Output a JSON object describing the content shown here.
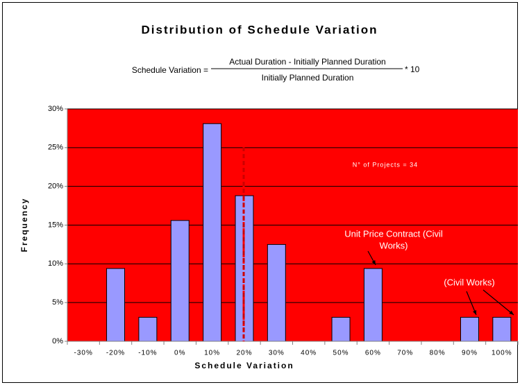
{
  "chart_data": {
    "type": "bar",
    "title": "Distribution of Schedule Variation",
    "formula": {
      "lhs": "Schedule  Variation =",
      "numerator": "Actual Duration - Initially Planned Duration",
      "denominator": "Initially Planned Duration",
      "factor": "* 10"
    },
    "x_label": "Schedule Variation",
    "y_label": "Frequency",
    "categories": [
      "-30%",
      "-20%",
      "-10%",
      "0%",
      "10%",
      "20%",
      "30%",
      "40%",
      "50%",
      "60%",
      "70%",
      "80%",
      "90%",
      "100%"
    ],
    "values": [
      0,
      9.4,
      3.1,
      15.6,
      28.1,
      18.8,
      12.5,
      0,
      3.1,
      9.4,
      0,
      0,
      3.1,
      3.1
    ],
    "color": "#9999ff",
    "background": "#ff0000",
    "ylim": [
      0,
      30
    ],
    "yticks": [
      {
        "value": 0,
        "label": "0%"
      },
      {
        "value": 5,
        "label": "5%"
      },
      {
        "value": 10,
        "label": "10%"
      },
      {
        "value": 15,
        "label": "15%"
      },
      {
        "value": 20,
        "label": "20%"
      },
      {
        "value": 25,
        "label": "25%"
      },
      {
        "value": 30,
        "label": "30%"
      }
    ],
    "grid": true,
    "annotations": [
      [
        "N° of Projects = 34"
      ],
      [
        "Unit Price Contract (Civil",
        "Works)"
      ],
      [
        "(Civil Works)"
      ]
    ]
  }
}
